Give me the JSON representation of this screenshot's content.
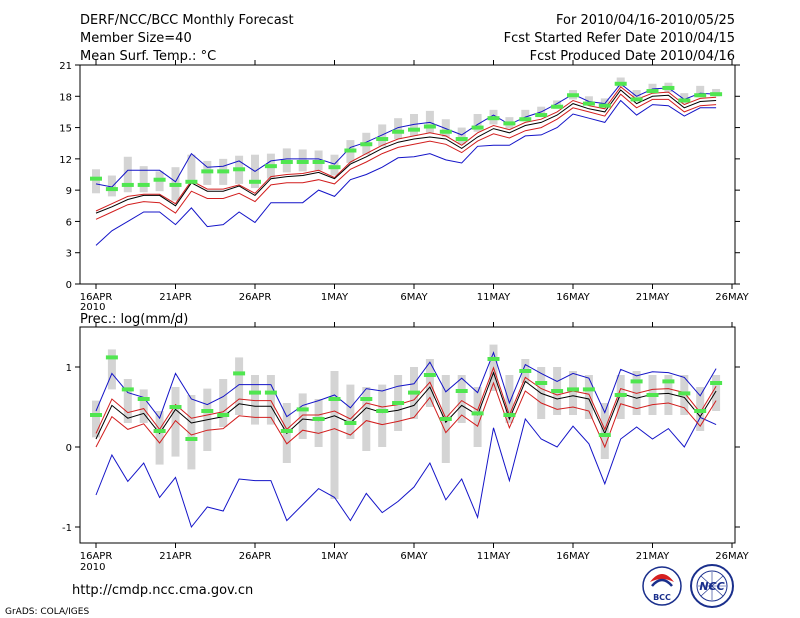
{
  "header": {
    "title": "DERF/NCC/BCC Monthly Forecast",
    "member_size": "Member Size=40",
    "variable": "Mean Surf. Temp.: °C",
    "forecast_period": "For 2010/04/16-2010/05/25",
    "started_refer": "Fcst Started Refer Date 2010/04/15",
    "produced": "Fcst Produced Date 2010/04/16"
  },
  "x_ticks": [
    {
      "day": 0,
      "label": "16APR"
    },
    {
      "day": 5,
      "label": "21APR"
    },
    {
      "day": 10,
      "label": "26APR"
    },
    {
      "day": 15,
      "label": "1MAY"
    },
    {
      "day": 20,
      "label": "6MAY"
    },
    {
      "day": 25,
      "label": "11MAY"
    },
    {
      "day": 30,
      "label": "16MAY"
    },
    {
      "day": 35,
      "label": "21MAY"
    },
    {
      "day": 40,
      "label": "26MAY"
    }
  ],
  "x_year": "2010",
  "prec_label": "Prec.: log(mm/d)",
  "footer": {
    "url": "http://cmdp.ncc.cma.gov.cn",
    "credit": "GrADS: COLA/IGES",
    "logo_left_text": "BCC",
    "logo_right_text": "NCC"
  },
  "colors": {
    "max_line": "#1414c8",
    "min_line": "#1414c8",
    "upper_line": "#d21e1e",
    "lower_line": "#d21e1e",
    "mean_line": "#000000",
    "box": "#d4d4d4",
    "climo": "#50e650"
  },
  "chart_data": [
    {
      "type": "line",
      "title": "Mean Surf. Temp.: °C",
      "x": [
        0,
        1,
        2,
        3,
        4,
        5,
        6,
        7,
        8,
        9,
        10,
        11,
        12,
        13,
        14,
        15,
        16,
        17,
        18,
        19,
        20,
        21,
        22,
        23,
        24,
        25,
        26,
        27,
        28,
        29,
        30,
        31,
        32,
        33,
        34,
        35,
        36,
        37,
        38,
        39
      ],
      "ylim": [
        0,
        21
      ],
      "yticks": [
        0,
        3,
        6,
        9,
        12,
        15,
        18,
        21
      ],
      "series": [
        {
          "name": "max",
          "values": [
            9.6,
            9.3,
            10.9,
            10.9,
            10.9,
            9.8,
            12.5,
            11.2,
            11.3,
            11.8,
            10.8,
            11.8,
            12.0,
            12.0,
            12.0,
            11.5,
            13.1,
            13.6,
            14.3,
            15.0,
            15.3,
            15.5,
            14.9,
            14.3,
            15.3,
            16.2,
            15.3,
            16.0,
            16.5,
            17.3,
            18.2,
            17.5,
            17.3,
            19.2,
            18.0,
            18.7,
            18.8,
            17.7,
            18.3,
            18.2
          ]
        },
        {
          "name": "upper",
          "values": [
            7.0,
            7.7,
            8.4,
            8.6,
            8.6,
            7.7,
            9.9,
            9.1,
            9.1,
            9.5,
            8.7,
            10.3,
            10.5,
            10.6,
            10.9,
            10.2,
            11.7,
            12.5,
            13.3,
            13.9,
            14.2,
            14.5,
            14.2,
            13.3,
            14.5,
            15.2,
            14.8,
            15.5,
            15.8,
            16.5,
            17.6,
            17.1,
            16.8,
            18.9,
            17.7,
            18.3,
            18.4,
            17.2,
            17.8,
            17.9
          ]
        },
        {
          "name": "mean",
          "values": [
            6.8,
            7.4,
            8.1,
            8.5,
            8.5,
            7.5,
            9.7,
            8.9,
            8.9,
            9.4,
            8.5,
            10.1,
            10.3,
            10.4,
            10.7,
            10.1,
            11.5,
            12.2,
            13.0,
            13.6,
            13.9,
            14.1,
            13.9,
            13.0,
            14.1,
            14.9,
            14.5,
            15.2,
            15.5,
            16.2,
            17.3,
            16.8,
            16.5,
            18.6,
            17.3,
            18.0,
            18.1,
            16.9,
            17.5,
            17.6
          ]
        },
        {
          "name": "lower",
          "values": [
            6.2,
            6.9,
            7.6,
            7.9,
            7.8,
            6.8,
            8.9,
            8.2,
            8.2,
            8.7,
            7.9,
            9.5,
            9.7,
            9.7,
            10.0,
            9.6,
            11.0,
            11.7,
            12.5,
            13.1,
            13.4,
            13.7,
            13.4,
            12.6,
            13.7,
            14.4,
            14.0,
            14.7,
            15.0,
            15.8,
            16.9,
            16.5,
            16.1,
            18.2,
            16.9,
            17.7,
            17.7,
            16.5,
            17.1,
            17.2
          ]
        },
        {
          "name": "min",
          "values": [
            3.7,
            5.1,
            6.0,
            6.9,
            6.9,
            5.7,
            7.3,
            5.5,
            5.7,
            6.9,
            5.9,
            7.8,
            7.8,
            7.8,
            9.0,
            8.4,
            10.0,
            10.5,
            11.2,
            12.1,
            12.2,
            12.5,
            11.9,
            11.6,
            13.2,
            13.3,
            13.3,
            14.2,
            14.3,
            15.0,
            16.3,
            15.9,
            15.5,
            17.6,
            16.2,
            17.2,
            17.1,
            16.1,
            16.9,
            16.9
          ]
        },
        {
          "name": "box_low",
          "values": [
            8.7,
            8.4,
            8.8,
            8.8,
            8.9,
            8.0,
            9.8,
            9.5,
            9.5,
            9.6,
            9.2,
            10.1,
            10.7,
            10.8,
            10.9,
            10.4,
            11.6,
            12.4,
            13.2,
            13.9,
            14.2,
            14.5,
            14.1,
            13.4,
            14.6,
            15.3,
            14.9,
            15.6,
            16.0,
            16.8,
            17.7,
            17.2,
            16.9,
            18.9,
            17.6,
            18.3,
            18.4,
            17.3,
            17.9,
            18.0
          ]
        },
        {
          "name": "box_high",
          "values": [
            11.0,
            10.4,
            12.2,
            11.3,
            10.8,
            11.2,
            12.4,
            11.8,
            12.0,
            12.3,
            12.4,
            12.5,
            13.0,
            12.9,
            12.8,
            12.4,
            13.8,
            14.5,
            15.3,
            15.9,
            16.3,
            16.6,
            15.8,
            15.0,
            16.3,
            16.7,
            16.0,
            16.7,
            17.0,
            17.6,
            18.6,
            18.0,
            17.8,
            19.8,
            18.6,
            19.2,
            19.3,
            18.3,
            19.0,
            18.7
          ]
        },
        {
          "name": "climatology",
          "values": [
            10.1,
            9.1,
            9.5,
            9.5,
            10.0,
            9.5,
            9.8,
            10.8,
            10.8,
            11.0,
            9.8,
            11.3,
            11.7,
            11.7,
            11.7,
            11.2,
            12.8,
            13.4,
            13.9,
            14.6,
            14.8,
            15.1,
            14.6,
            13.9,
            15.0,
            15.9,
            15.4,
            15.8,
            16.2,
            17.0,
            18.1,
            17.3,
            17.1,
            19.2,
            17.7,
            18.5,
            18.8,
            17.6,
            18.1,
            18.2
          ]
        }
      ]
    },
    {
      "type": "line",
      "title": "Prec.: log(mm/d)",
      "x": [
        0,
        1,
        2,
        3,
        4,
        5,
        6,
        7,
        8,
        9,
        10,
        11,
        12,
        13,
        14,
        15,
        16,
        17,
        18,
        19,
        20,
        21,
        22,
        23,
        24,
        25,
        26,
        27,
        28,
        29,
        30,
        31,
        32,
        33,
        34,
        35,
        36,
        37,
        38,
        39
      ],
      "ylim": [
        -1.2,
        1.5
      ],
      "yticks": [
        -1,
        0,
        1
      ],
      "series": [
        {
          "name": "max",
          "values": [
            0.45,
            0.92,
            0.68,
            0.62,
            0.36,
            0.92,
            0.6,
            0.53,
            0.63,
            0.78,
            0.78,
            0.78,
            0.38,
            0.52,
            0.58,
            0.65,
            0.49,
            0.73,
            0.7,
            0.76,
            0.79,
            1.06,
            0.69,
            0.86,
            0.68,
            1.18,
            0.55,
            1.03,
            0.92,
            0.82,
            0.92,
            0.86,
            0.43,
            0.97,
            0.89,
            0.94,
            0.93,
            0.87,
            0.64,
            0.98
          ]
        },
        {
          "name": "upper",
          "values": [
            0.17,
            0.6,
            0.43,
            0.48,
            0.22,
            0.53,
            0.36,
            0.4,
            0.44,
            0.6,
            0.58,
            0.58,
            0.22,
            0.4,
            0.4,
            0.45,
            0.35,
            0.55,
            0.5,
            0.53,
            0.59,
            0.81,
            0.36,
            0.58,
            0.46,
            0.99,
            0.4,
            0.87,
            0.73,
            0.65,
            0.7,
            0.66,
            0.22,
            0.73,
            0.67,
            0.72,
            0.73,
            0.68,
            0.43,
            0.76
          ]
        },
        {
          "name": "mean",
          "values": [
            0.1,
            0.52,
            0.36,
            0.42,
            0.17,
            0.47,
            0.3,
            0.34,
            0.38,
            0.54,
            0.51,
            0.51,
            0.17,
            0.35,
            0.33,
            0.39,
            0.3,
            0.49,
            0.43,
            0.46,
            0.52,
            0.75,
            0.31,
            0.52,
            0.4,
            0.93,
            0.35,
            0.82,
            0.67,
            0.6,
            0.64,
            0.6,
            0.17,
            0.67,
            0.61,
            0.66,
            0.67,
            0.62,
            0.38,
            0.7
          ]
        },
        {
          "name": "lower",
          "values": [
            0.0,
            0.38,
            0.22,
            0.29,
            0.05,
            0.33,
            0.15,
            0.21,
            0.23,
            0.39,
            0.37,
            0.37,
            0.04,
            0.21,
            0.17,
            0.23,
            0.15,
            0.33,
            0.28,
            0.32,
            0.37,
            0.62,
            0.18,
            0.4,
            0.26,
            0.8,
            0.24,
            0.7,
            0.55,
            0.47,
            0.5,
            0.45,
            0.0,
            0.54,
            0.48,
            0.53,
            0.55,
            0.49,
            0.26,
            0.58
          ]
        },
        {
          "name": "min",
          "values": [
            -0.6,
            -0.1,
            -0.43,
            -0.2,
            -0.63,
            -0.38,
            -1.0,
            -0.75,
            -0.8,
            -0.4,
            -0.42,
            -0.42,
            -0.92,
            -0.72,
            -0.52,
            -0.63,
            -0.92,
            -0.58,
            -0.82,
            -0.68,
            -0.5,
            -0.2,
            -0.66,
            -0.4,
            -0.88,
            0.24,
            -0.42,
            0.35,
            0.1,
            0.0,
            0.26,
            0.04,
            -0.46,
            0.1,
            0.25,
            0.1,
            0.23,
            0.0,
            0.37,
            0.28
          ]
        },
        {
          "name": "box_low",
          "values": [
            0.12,
            0.72,
            0.3,
            0.3,
            -0.22,
            -0.12,
            -0.28,
            -0.05,
            0.25,
            0.4,
            0.28,
            0.28,
            -0.2,
            0.1,
            0.0,
            -0.65,
            0.1,
            -0.05,
            0.0,
            0.2,
            0.35,
            0.5,
            -0.2,
            0.3,
            0.0,
            0.7,
            0.3,
            0.8,
            0.35,
            0.4,
            0.4,
            0.35,
            -0.15,
            0.35,
            0.4,
            0.4,
            0.4,
            0.4,
            0.2,
            0.45
          ]
        },
        {
          "name": "box_high",
          "values": [
            0.58,
            1.22,
            0.85,
            0.72,
            0.45,
            0.75,
            0.65,
            0.73,
            0.85,
            1.12,
            0.9,
            0.9,
            0.55,
            0.67,
            0.6,
            0.95,
            0.78,
            0.75,
            0.78,
            0.9,
            1.0,
            1.1,
            0.9,
            0.9,
            0.75,
            1.28,
            0.9,
            1.1,
            1.0,
            1.0,
            0.95,
            0.9,
            0.55,
            0.9,
            0.95,
            0.9,
            0.9,
            0.9,
            0.75,
            0.9
          ]
        },
        {
          "name": "climatology",
          "values": [
            0.4,
            1.12,
            0.72,
            0.6,
            0.2,
            0.5,
            0.1,
            0.45,
            0.4,
            0.92,
            0.68,
            0.68,
            0.2,
            0.47,
            0.35,
            0.6,
            0.3,
            0.6,
            0.45,
            0.55,
            0.68,
            0.9,
            0.35,
            0.7,
            0.42,
            1.1,
            0.4,
            0.95,
            0.8,
            0.7,
            0.72,
            0.72,
            0.15,
            0.65,
            0.82,
            0.65,
            0.82,
            0.67,
            0.45,
            0.8
          ]
        }
      ]
    }
  ]
}
